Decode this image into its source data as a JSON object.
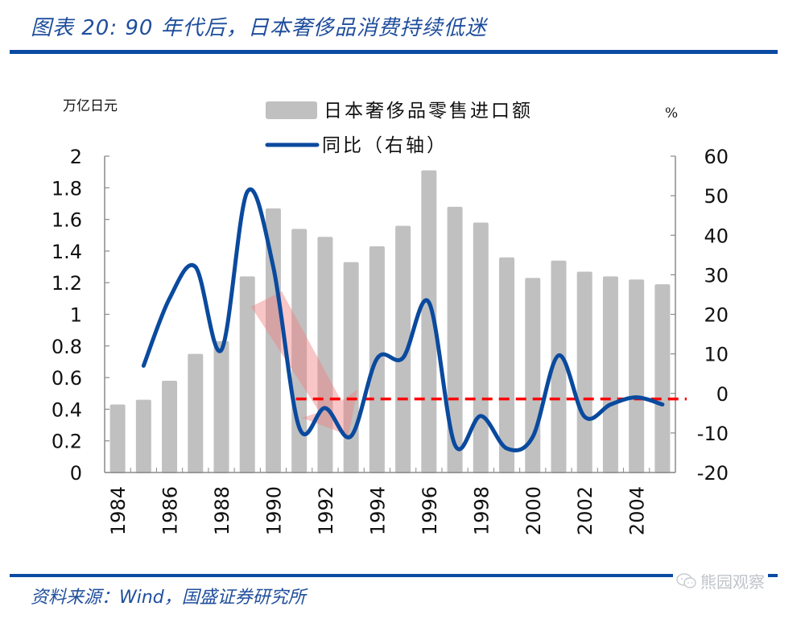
{
  "header": {
    "title": "图表 20: 90 年代后，日本奢侈品消费持续低迷"
  },
  "footer": {
    "source": "资料来源：Wind，国盛证券研究所",
    "watermark": "熊园观察",
    "watermark_icon": "wechat-icon"
  },
  "colors": {
    "brand_blue": "#0b4aa2",
    "bar_gray": "#c0c0c0",
    "line_blue": "#0a4a9e",
    "ref_red": "#ff0000",
    "arrow_red": "#f08080"
  },
  "chart_data": {
    "type": "bar+line",
    "title": "90 年代后，日本奢侈品消费持续低迷",
    "categories": [
      "1984",
      "1985",
      "1986",
      "1987",
      "1988",
      "1989",
      "1990",
      "1991",
      "1992",
      "1993",
      "1994",
      "1995",
      "1996",
      "1997",
      "1998",
      "1999",
      "2000",
      "2001",
      "2002",
      "2003",
      "2004",
      "2005"
    ],
    "x_tick_labels": [
      "1984",
      "1986",
      "1988",
      "1990",
      "1992",
      "1994",
      "1996",
      "1998",
      "2000",
      "2002",
      "2004"
    ],
    "left_axis": {
      "unit": "万亿日元",
      "ylim": [
        0,
        2
      ],
      "ticks": [
        "0",
        "0.2",
        "0.4",
        "0.6",
        "0.8",
        "1",
        "1.2",
        "1.4",
        "1.6",
        "1.8",
        "2"
      ],
      "tick_values": [
        0,
        0.2,
        0.4,
        0.6,
        0.8,
        1,
        1.2,
        1.4,
        1.6,
        1.8,
        2
      ]
    },
    "right_axis": {
      "unit": "%",
      "ylim": [
        -20,
        60
      ],
      "ticks": [
        "-20",
        "-10",
        "0",
        "10",
        "20",
        "30",
        "40",
        "50",
        "60"
      ],
      "tick_values": [
        -20,
        -10,
        0,
        10,
        20,
        30,
        40,
        50,
        60
      ]
    },
    "series": [
      {
        "name": "日本奢侈品零售进口额",
        "type": "bar",
        "axis": "left",
        "values": [
          0.43,
          0.46,
          0.58,
          0.75,
          0.83,
          1.24,
          1.67,
          1.54,
          1.49,
          1.33,
          1.43,
          1.56,
          1.91,
          1.68,
          1.58,
          1.36,
          1.23,
          1.34,
          1.27,
          1.24,
          1.22,
          1.19
        ]
      },
      {
        "name": "同比（右轴）",
        "type": "line",
        "axis": "right",
        "smooth": true,
        "values": [
          null,
          7,
          24,
          32,
          11,
          51,
          32,
          -8.6,
          -3.7,
          -10.8,
          8.8,
          9,
          23,
          -13,
          -5.7,
          -13.9,
          -11,
          9.6,
          -5.9,
          -2.8,
          -1,
          -2.8
        ]
      }
    ],
    "reference_line": {
      "axis": "right",
      "value": -1.4,
      "style": "dashed",
      "from": "1991",
      "to": "2005"
    },
    "annotation": {
      "type": "arrow",
      "description": "downward arrow from 1989 to 1993",
      "from": "1989",
      "to": "1993"
    },
    "legend": {
      "placement": "top-center",
      "entries": [
        "日本奢侈品零售进口额",
        "同比（右轴）"
      ]
    },
    "grid": false
  }
}
